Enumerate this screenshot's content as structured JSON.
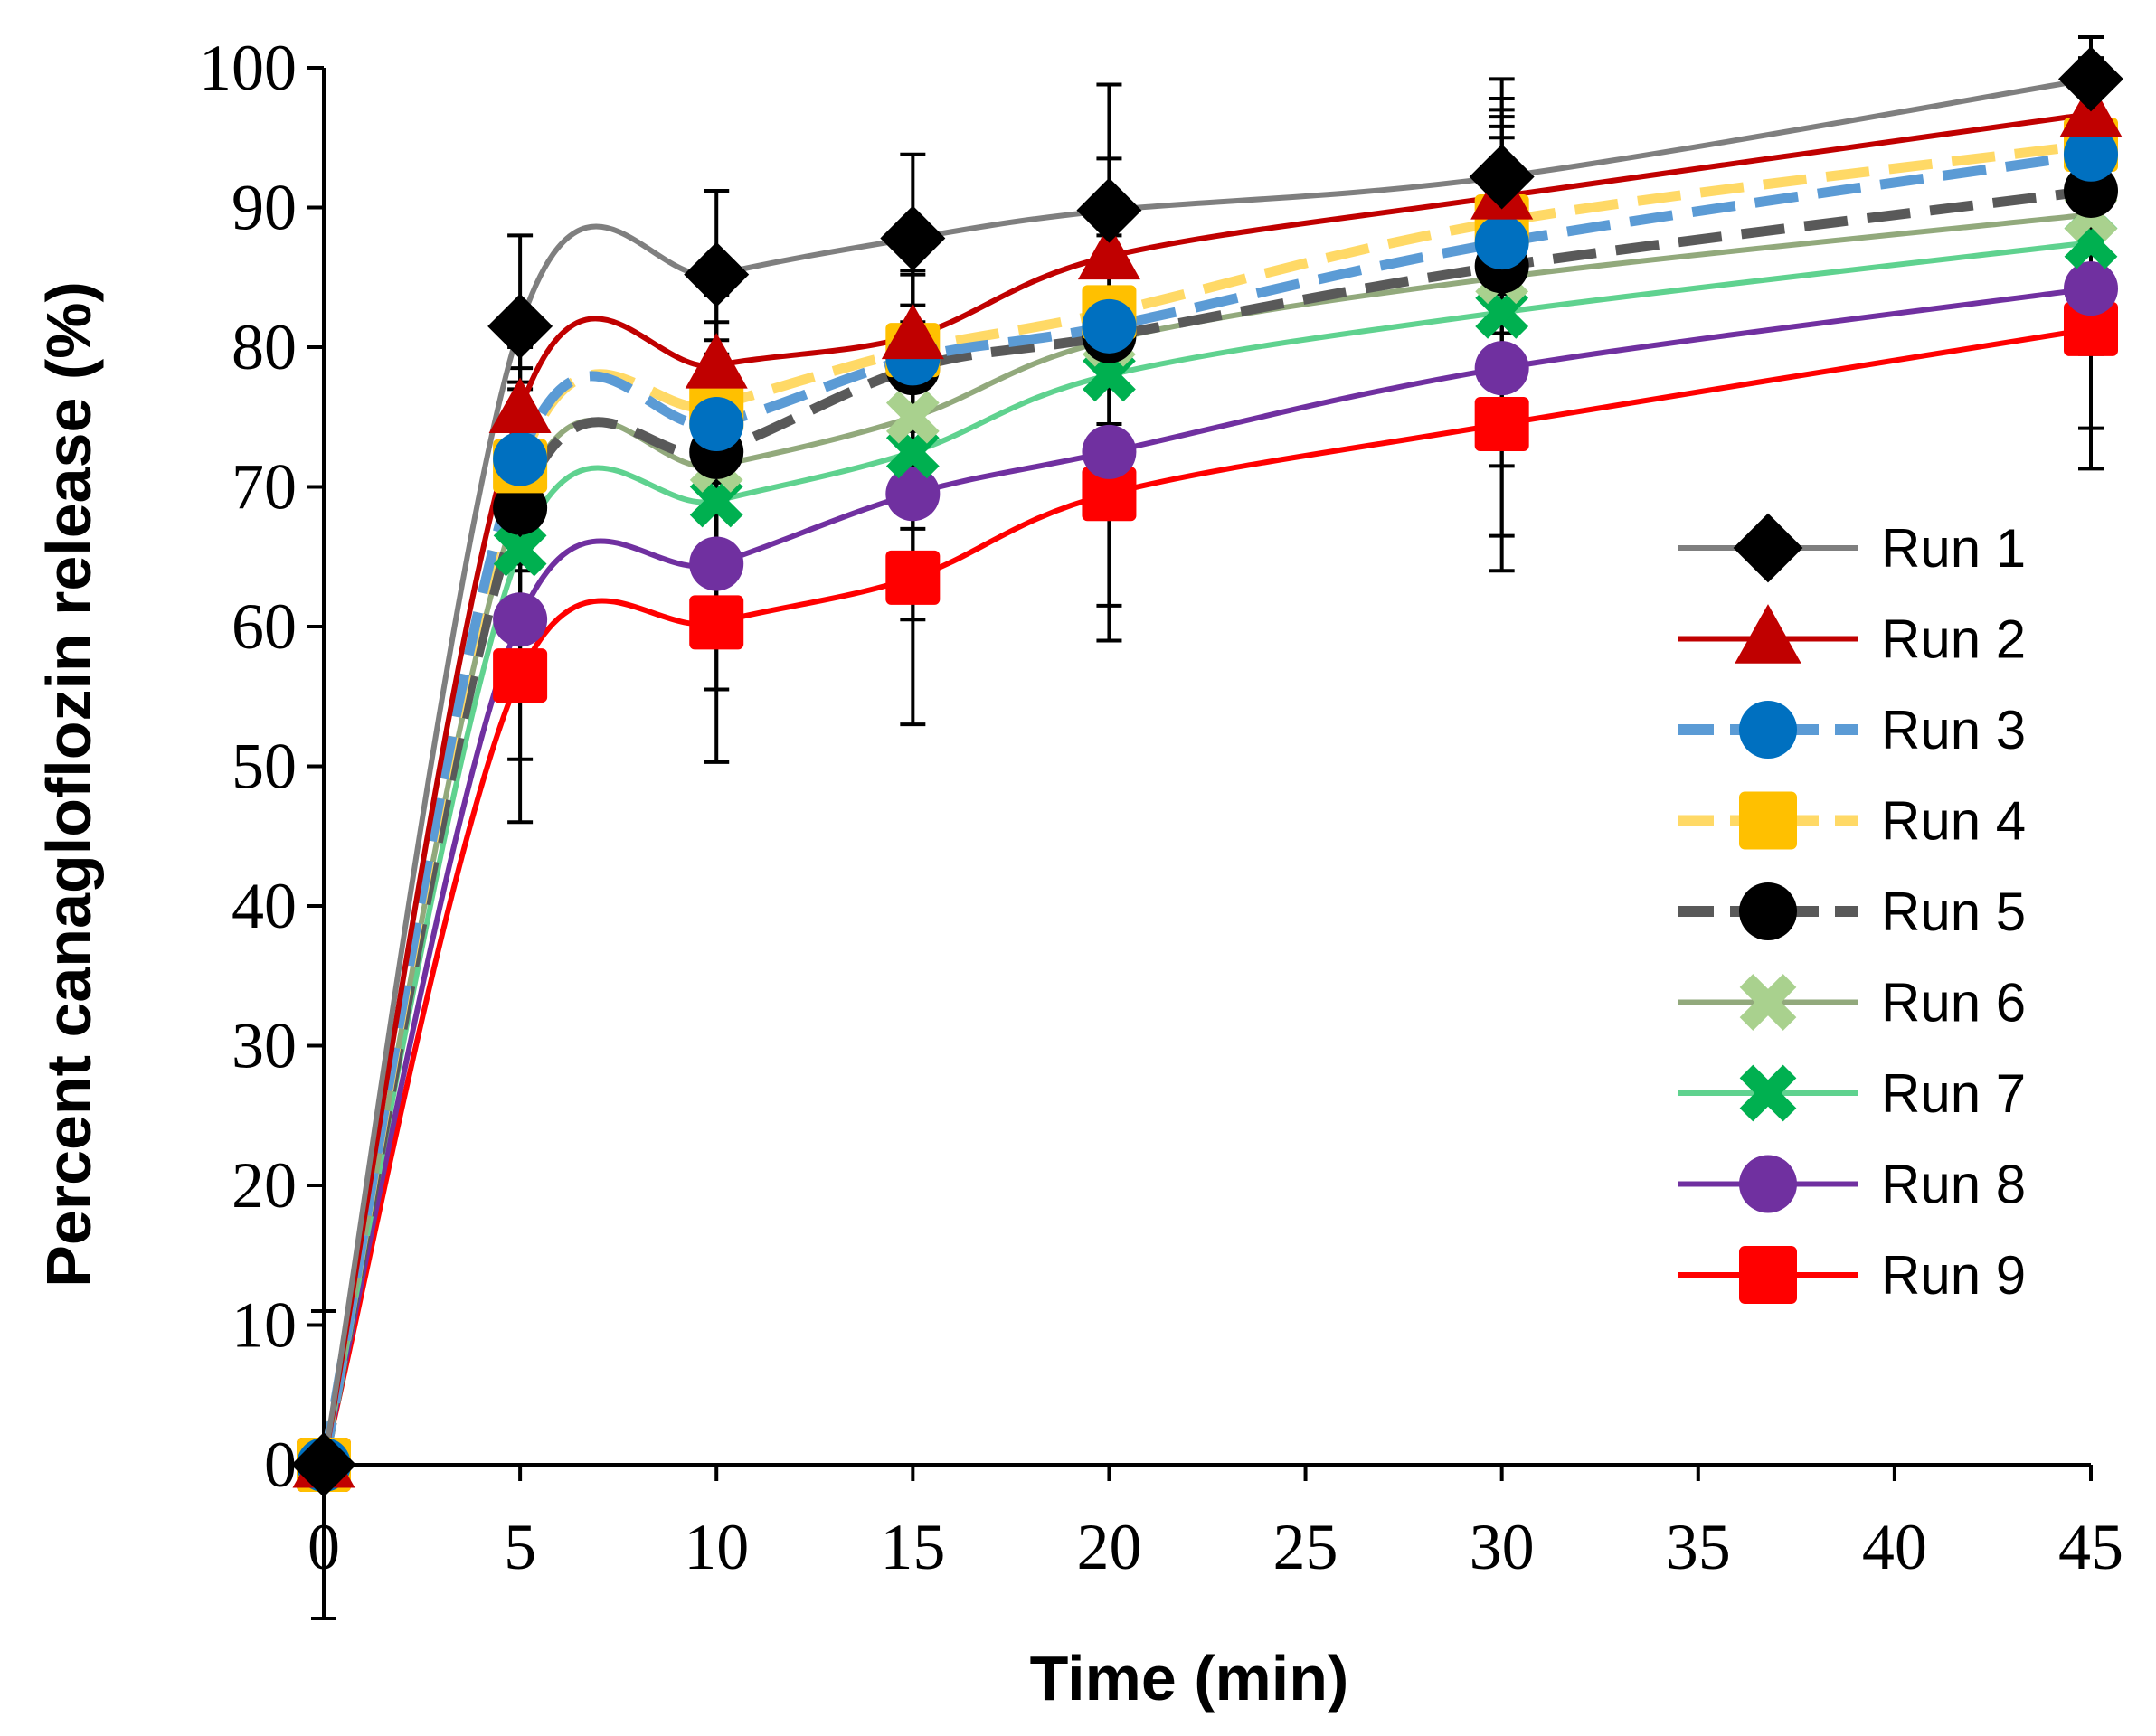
{
  "chart_data": {
    "type": "line",
    "title": "",
    "xlabel": "Time (min)",
    "ylabel": "Percent canagloflozin  release (%)",
    "xlim": [
      0,
      45
    ],
    "ylim": [
      0,
      100
    ],
    "x_ticks": [
      0,
      5,
      10,
      15,
      20,
      25,
      30,
      35,
      40,
      45
    ],
    "y_ticks": [
      0,
      10,
      20,
      30,
      40,
      50,
      60,
      70,
      80,
      90,
      100
    ],
    "grid": false,
    "legend_position": "right",
    "x": [
      0,
      5,
      10,
      15,
      20,
      30,
      45
    ],
    "series": [
      {
        "name": "Run 1",
        "values": [
          0,
          81.5,
          85.2,
          87.8,
          89.8,
          92.2,
          99.2
        ],
        "color": "#7f7f7f",
        "marker": "diamond",
        "marker_color": "#000000",
        "dash": "solid",
        "error": [
          11,
          6.5,
          6,
          6,
          9,
          7,
          3
        ]
      },
      {
        "name": "Run 2",
        "values": [
          0,
          75.5,
          78.7,
          80.8,
          86.5,
          90.8,
          96.7
        ],
        "color": "#c00000",
        "marker": "triangle",
        "marker_color": "#c00000",
        "dash": "solid",
        "error": [
          0,
          6,
          5,
          6,
          7,
          7,
          4
        ]
      },
      {
        "name": "Run 3",
        "values": [
          0,
          72,
          74.5,
          79.2,
          81.5,
          87.5,
          93.8
        ],
        "color": "#5b9bd5",
        "marker": "circle",
        "marker_color": "#0070c0",
        "dash": "dash",
        "error": [
          0,
          8,
          6,
          6,
          8,
          9,
          5
        ]
      },
      {
        "name": "Run 4",
        "values": [
          0,
          71.5,
          75.8,
          79.8,
          82.5,
          89,
          94.5
        ],
        "color": "#ffd966",
        "marker": "square",
        "marker_color": "#ffc000",
        "dash": "dash",
        "error": [
          0,
          7,
          6,
          7,
          8,
          8,
          5
        ]
      },
      {
        "name": "Run 5",
        "values": [
          0,
          68.5,
          72.5,
          78.5,
          80.8,
          85.8,
          91.2
        ],
        "color": "#595959",
        "marker": "circle",
        "marker_color": "#000000",
        "dash": "dash",
        "error": [
          0,
          9,
          7,
          7,
          9,
          10,
          6
        ]
      },
      {
        "name": "Run 6",
        "values": [
          0,
          69,
          71.5,
          75,
          80.5,
          85,
          89.5
        ],
        "color": "#92a97c",
        "marker": "x",
        "marker_color": "#a9d18e",
        "dash": "solid",
        "error": [
          0,
          8,
          7,
          8,
          9,
          10,
          7
        ]
      },
      {
        "name": "Run 7",
        "values": [
          0,
          65.5,
          69,
          72.5,
          78,
          82.5,
          87.5
        ],
        "color": "#5fd28f",
        "marker": "x",
        "marker_color": "#00b050",
        "dash": "solid",
        "error": [
          0,
          9,
          8,
          8,
          10,
          11,
          8
        ]
      },
      {
        "name": "Run 8",
        "values": [
          0,
          60.5,
          64.5,
          69.5,
          72.5,
          78.5,
          84.2
        ],
        "color": "#7030a0",
        "marker": "circle",
        "marker_color": "#7030a0",
        "dash": "solid",
        "error": [
          0,
          10,
          9,
          9,
          11,
          12,
          10
        ]
      },
      {
        "name": "Run 9",
        "values": [
          0,
          56.5,
          60.3,
          63.5,
          69.5,
          74.5,
          81.3
        ],
        "color": "#ff0000",
        "marker": "square",
        "marker_color": "#ff0000",
        "dash": "solid",
        "error": [
          0,
          10.5,
          10,
          10.5,
          10.5,
          10.5,
          10
        ]
      }
    ]
  }
}
